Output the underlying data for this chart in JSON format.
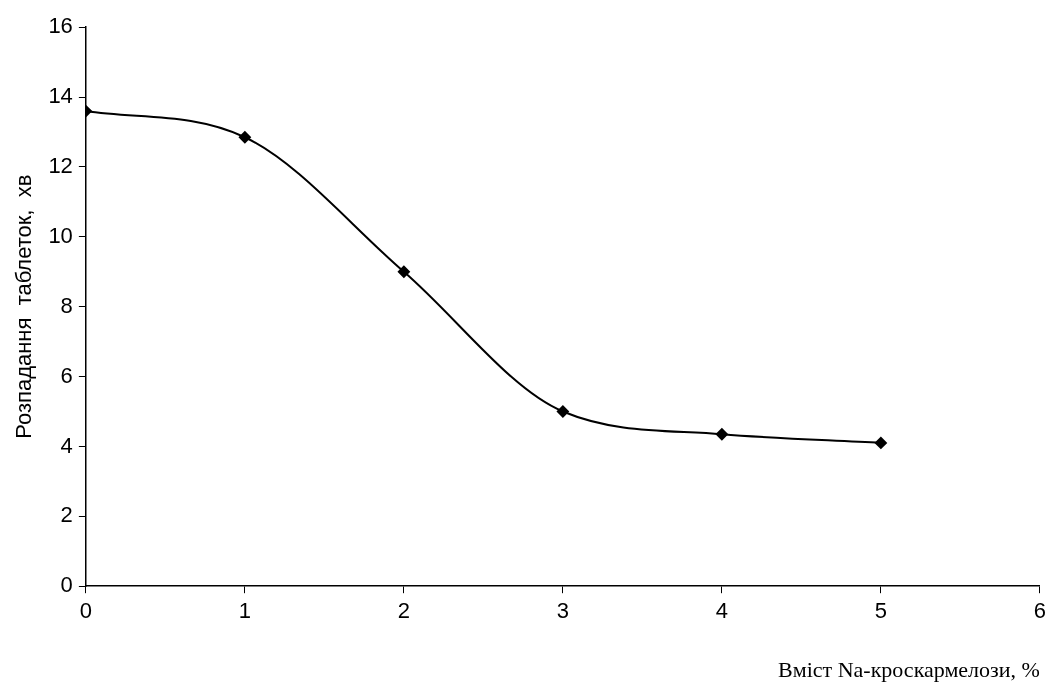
{
  "chart_data": {
    "type": "line",
    "xlabel": "Вміст Na-кроскармелози, %",
    "ylabel": "Розпадання  таблеток,  хв",
    "x": [
      0,
      1,
      2,
      3,
      4,
      5
    ],
    "series": [
      {
        "color": "#000000",
        "values": [
          13.6,
          12.85,
          9.0,
          5.0,
          4.35,
          4.1
        ]
      }
    ],
    "xlim": [
      0,
      6
    ],
    "xticks": [
      0,
      1,
      2,
      3,
      4,
      5,
      6
    ],
    "ylim": [
      0,
      16
    ],
    "yticks": [
      0,
      2,
      4,
      6,
      8,
      10,
      12,
      14,
      16
    ],
    "grid": false,
    "legend": false,
    "marker": "diamond",
    "line_style": "solid"
  }
}
